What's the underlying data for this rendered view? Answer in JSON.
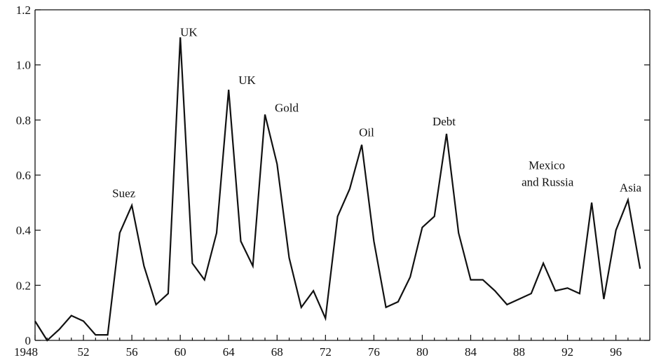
{
  "chart_data": {
    "type": "line",
    "title": "",
    "xlabel": "",
    "ylabel": "",
    "xlim": [
      1948,
      1998.8
    ],
    "ylim": [
      0,
      1.2
    ],
    "grid": false,
    "legend": "none",
    "x_ticks": [
      1948,
      1952,
      1956,
      1960,
      1964,
      1968,
      1972,
      1976,
      1980,
      1984,
      1988,
      1992,
      1996
    ],
    "x_tick_labels": [
      "1948",
      "52",
      "56",
      "60",
      "64",
      "68",
      "72",
      "76",
      "80",
      "84",
      "88",
      "92",
      "96"
    ],
    "y_ticks": [
      0,
      0.2,
      0.4,
      0.6,
      0.8,
      1.0,
      1.2
    ],
    "y_tick_labels": [
      "0",
      "0.2",
      "0.4",
      "0.6",
      "0.8",
      "1.0",
      "1.2"
    ],
    "series": [
      {
        "x": [
          1948,
          1949,
          1950,
          1951,
          1952,
          1953,
          1954,
          1955,
          1956,
          1957,
          1958,
          1959,
          1960,
          1961,
          1962,
          1963,
          1964,
          1965,
          1966,
          1967,
          1968,
          1969,
          1970,
          1971,
          1972,
          1973,
          1974,
          1975,
          1976,
          1977,
          1978,
          1979,
          1980,
          1981,
          1982,
          1983,
          1984,
          1985,
          1986,
          1987,
          1988,
          1989,
          1990,
          1991,
          1992,
          1993,
          1994,
          1995,
          1996,
          1997,
          1998
        ],
        "y": [
          0.07,
          0.0,
          0.04,
          0.09,
          0.07,
          0.02,
          0.02,
          0.39,
          0.49,
          0.27,
          0.13,
          0.17,
          1.1,
          0.28,
          0.22,
          0.39,
          0.91,
          0.36,
          0.27,
          0.82,
          0.64,
          0.3,
          0.12,
          0.18,
          0.08,
          0.45,
          0.55,
          0.71,
          0.36,
          0.12,
          0.14,
          0.23,
          0.41,
          0.45,
          0.75,
          0.39,
          0.22,
          0.22,
          0.18,
          0.13,
          0.15,
          0.17,
          0.28,
          0.18,
          0.19,
          0.17,
          0.5,
          0.15,
          0.4,
          0.51,
          0.26
        ]
      }
    ],
    "annotations": [
      {
        "text": "Suez",
        "x": 1956,
        "y": 0.49
      },
      {
        "text": "UK",
        "x": 1960,
        "y": 1.1
      },
      {
        "text": "UK",
        "x": 1964,
        "y": 0.91
      },
      {
        "text": "Gold",
        "x": 1967,
        "y": 0.82
      },
      {
        "text": "Oil",
        "x": 1975,
        "y": 0.71
      },
      {
        "text": "Debt",
        "x": 1982,
        "y": 0.75
      },
      {
        "text": "Mexico",
        "x": 1994,
        "y": 0.5
      },
      {
        "text": "and Russia",
        "x": 1994,
        "y": 0.5
      },
      {
        "text": "Asia",
        "x": 1997,
        "y": 0.51
      }
    ]
  }
}
